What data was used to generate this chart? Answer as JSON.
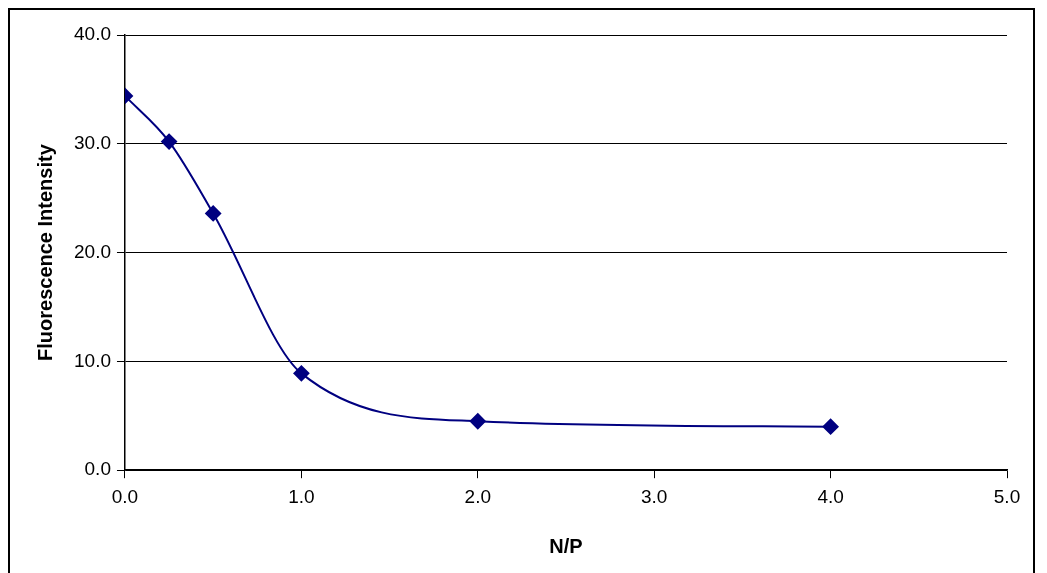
{
  "chart_data": {
    "type": "line",
    "xlabel": "N/P",
    "ylabel": "Fluorescence Intensity",
    "x": [
      0,
      0.25,
      0.5,
      1,
      2,
      4
    ],
    "series": [
      {
        "color": "#000080",
        "values": [
          34.4,
          30.2,
          23.6,
          8.9,
          4.5,
          4.0
        ]
      }
    ],
    "xlim": [
      0,
      5
    ],
    "xticks": [
      {
        "value": 0,
        "label": "0.0"
      },
      {
        "value": 1,
        "label": "1.0"
      },
      {
        "value": 2,
        "label": "2.0"
      },
      {
        "value": 3,
        "label": "3.0"
      },
      {
        "value": 4,
        "label": "4.0"
      },
      {
        "value": 5,
        "label": "5.0"
      }
    ],
    "ylim": [
      0,
      40
    ],
    "yticks": [
      {
        "value": 0,
        "label": "0.0"
      },
      {
        "value": 10,
        "label": "10.0"
      },
      {
        "value": 20,
        "label": "20.0"
      },
      {
        "value": 30,
        "label": "30.0"
      },
      {
        "value": 40,
        "label": "40.0"
      }
    ],
    "grid": "y",
    "legend": false,
    "marker": "diamond",
    "line_style": "solid"
  }
}
